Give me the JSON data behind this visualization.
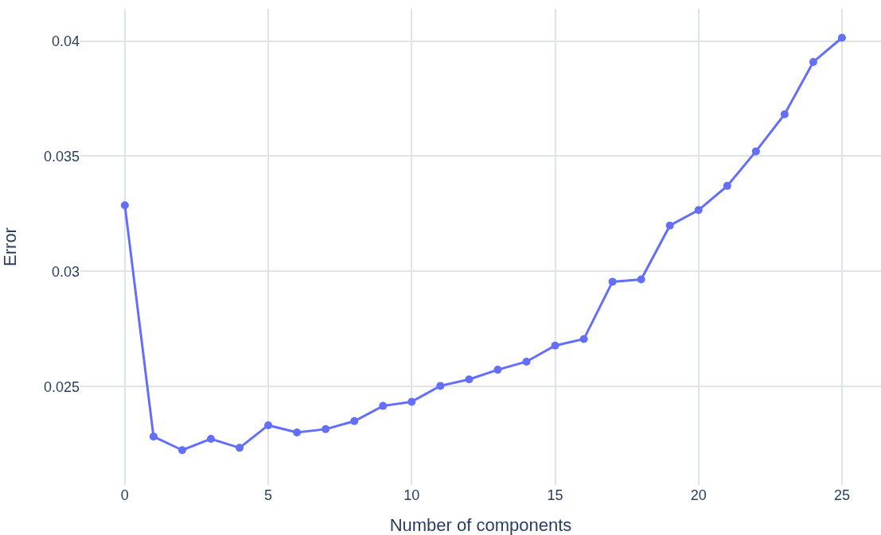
{
  "chart_data": {
    "type": "line",
    "xlabel": "Number of components",
    "ylabel": "Error",
    "x": [
      0,
      1,
      2,
      3,
      4,
      5,
      6,
      7,
      8,
      9,
      10,
      11,
      12,
      13,
      14,
      15,
      16,
      17,
      18,
      19,
      20,
      21,
      22,
      23,
      24,
      25
    ],
    "series": [
      {
        "color": "#636efa",
        "values": [
          0.03287,
          0.02283,
          0.02224,
          0.02273,
          0.02234,
          0.02332,
          0.02301,
          0.02315,
          0.0235,
          0.02416,
          0.02434,
          0.02503,
          0.02531,
          0.02573,
          0.02608,
          0.02678,
          0.02706,
          0.02955,
          0.02965,
          0.03199,
          0.03266,
          0.03371,
          0.03521,
          0.03682,
          0.03909,
          0.04014
        ]
      }
    ],
    "xlim": [
      -1.55,
      26.36
    ],
    "ylim": [
      0.02073,
      0.0414
    ],
    "xticks": [
      0,
      5,
      10,
      15,
      20,
      25
    ],
    "yticks": [
      0.025,
      0.03,
      0.035,
      0.04
    ],
    "grid": true,
    "marker": "circle",
    "line_style": "solid"
  }
}
